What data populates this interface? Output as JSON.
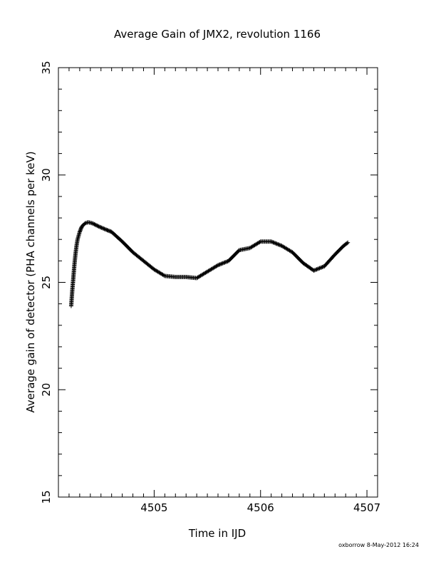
{
  "chart_data": {
    "type": "scatter",
    "marker": "plus",
    "title": "Average Gain of JMX2, revolution 1166",
    "xlabel": "Time in IJD",
    "ylabel": "Average gain of detector (PHA channels per keV)",
    "xlim": [
      4504.1,
      4507.1
    ],
    "ylim": [
      15,
      35
    ],
    "xticks": [
      4505,
      4506,
      4507
    ],
    "xtick_labels": [
      "4505",
      "4506",
      "4507"
    ],
    "yticks": [
      15,
      20,
      25,
      30,
      35
    ],
    "ytick_labels": [
      "15",
      "20",
      "25",
      "30",
      "35"
    ],
    "grid": false,
    "series": [
      {
        "color": "#000000",
        "x": [
          4504.22,
          4504.23,
          4504.24,
          4504.25,
          4504.26,
          4504.27,
          4504.28,
          4504.3,
          4504.32,
          4504.35,
          4504.38,
          4504.42,
          4504.48,
          4504.55,
          4504.6,
          4504.7,
          4504.8,
          4504.9,
          4505.0,
          4505.1,
          4505.2,
          4505.3,
          4505.4,
          4505.5,
          4505.6,
          4505.7,
          4505.8,
          4505.9,
          4506.0,
          4506.1,
          4506.2,
          4506.3,
          4506.4,
          4506.5,
          4506.6,
          4506.7,
          4506.78,
          4506.82
        ],
        "y": [
          23.9,
          24.6,
          25.2,
          25.8,
          26.3,
          26.7,
          27.0,
          27.35,
          27.6,
          27.75,
          27.8,
          27.75,
          27.6,
          27.45,
          27.35,
          26.9,
          26.4,
          26.0,
          25.6,
          25.3,
          25.25,
          25.25,
          25.2,
          25.5,
          25.8,
          26.0,
          26.5,
          26.6,
          26.9,
          26.9,
          26.7,
          26.4,
          25.9,
          25.55,
          25.75,
          26.3,
          26.7,
          26.85
        ]
      }
    ]
  },
  "footer": {
    "credit": "oxborrow  8-May-2012 16:24"
  }
}
